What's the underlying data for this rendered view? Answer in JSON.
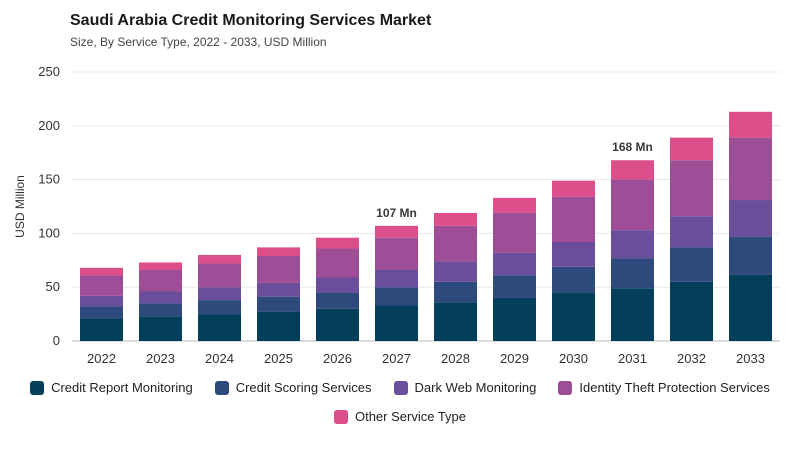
{
  "header": {
    "title": "Saudi Arabia Credit Monitoring Services Market",
    "subtitle": "Size, By Service Type, 2022 - 2033, USD Million"
  },
  "chart_data": {
    "type": "bar",
    "stacked": true,
    "title": "Saudi Arabia Credit Monitoring Services Market",
    "subtitle": "Size, By Service Type, 2022 - 2033, USD Million",
    "xlabel": "",
    "ylabel": "USD Million",
    "ylim": [
      0,
      250
    ],
    "yticks": [
      0,
      50,
      100,
      150,
      200,
      250
    ],
    "grid": true,
    "legend_position": "bottom",
    "categories": [
      "2022",
      "2023",
      "2024",
      "2025",
      "2026",
      "2027",
      "2028",
      "2029",
      "2030",
      "2031",
      "2032",
      "2033"
    ],
    "series": [
      {
        "name": "Credit Report Monitoring",
        "color": "#033e5b",
        "values": [
          21,
          23,
          25,
          27,
          30,
          33,
          36,
          40,
          45,
          49,
          55,
          62
        ]
      },
      {
        "name": "Credit Scoring Services",
        "color": "#2e4a7d",
        "values": [
          11,
          12,
          13,
          14,
          15,
          17,
          19,
          21,
          24,
          28,
          32,
          35
        ]
      },
      {
        "name": "Dark Web Monitoring",
        "color": "#6a4e9b",
        "values": [
          10,
          11,
          12,
          13,
          14,
          16,
          19,
          21,
          23,
          26,
          29,
          34
        ]
      },
      {
        "name": "Identity Theft Protection Services",
        "color": "#9e4d97",
        "values": [
          19,
          20,
          22,
          25,
          27,
          30,
          33,
          37,
          42,
          47,
          52,
          58
        ]
      },
      {
        "name": "Other Service Type",
        "color": "#dc4f8a",
        "values": [
          7,
          7,
          8,
          8,
          10,
          11,
          12,
          14,
          15,
          18,
          21,
          24
        ]
      }
    ],
    "annotations": [
      {
        "category": "2027",
        "label": "107 Mn"
      },
      {
        "category": "2031",
        "label": "168 Mn"
      }
    ]
  }
}
